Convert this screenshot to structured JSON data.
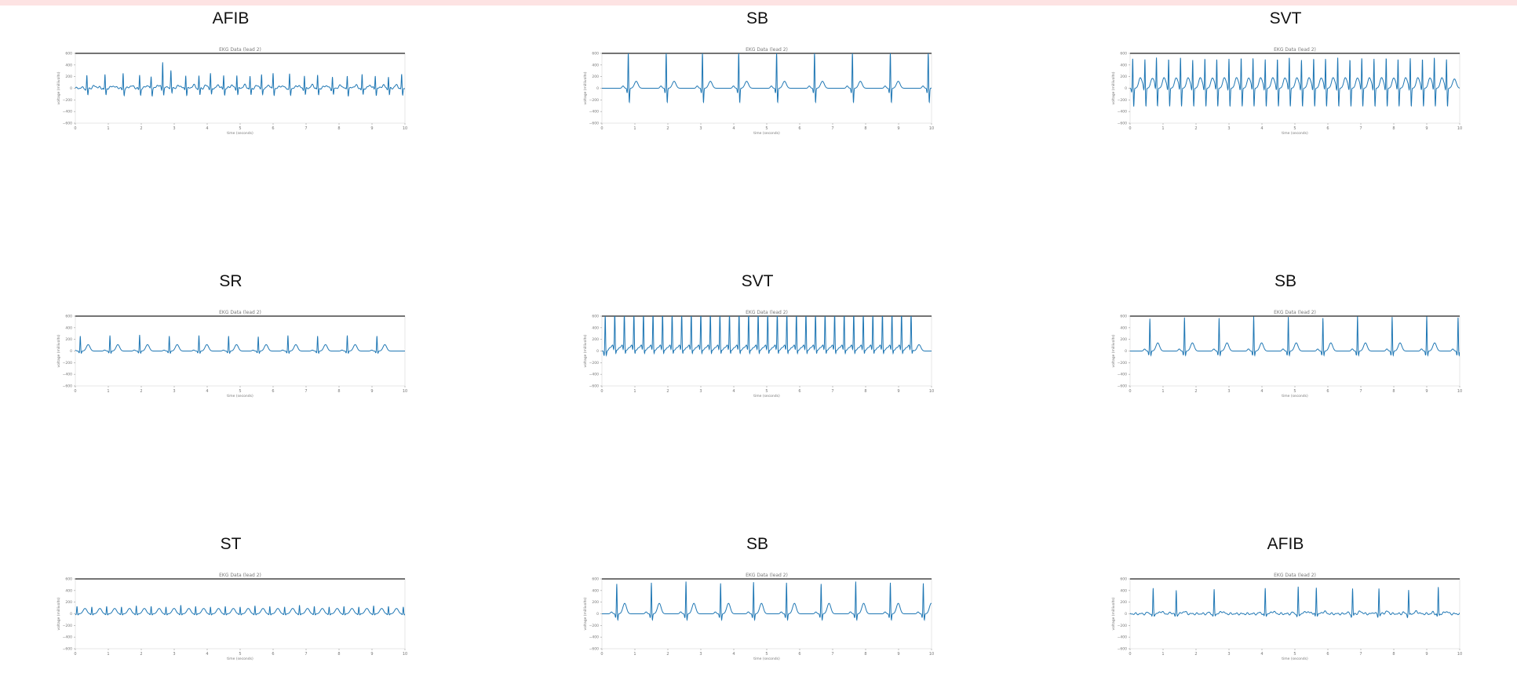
{
  "figure": {
    "subplot_title": "EKG Data (lead 2)",
    "xlabel": "time (seconds)",
    "ylabel": "voltage (millivolts)",
    "ecg_color": "#1f77b4"
  },
  "chart_data": [
    {
      "type": "line",
      "title": "AFIB",
      "subtitle": "EKG Data (lead 2)",
      "xlabel": "time (seconds)",
      "ylabel": "voltage (millivolts)",
      "xlim": [
        0,
        10
      ],
      "ylim": [
        -600,
        600
      ],
      "x_ticks": [
        0,
        1,
        2,
        3,
        4,
        5,
        6,
        7,
        8,
        9,
        10
      ],
      "y_ticks": [
        -600,
        -400,
        -200,
        0,
        200,
        400,
        600
      ],
      "beat_times": [
        0.35,
        0.9,
        1.45,
        1.95,
        2.3,
        2.65,
        2.9,
        3.35,
        3.75,
        4.1,
        4.5,
        4.9,
        5.3,
        5.65,
        6.0,
        6.5,
        6.95,
        7.35,
        7.8,
        8.25,
        8.7,
        9.1,
        9.5,
        9.9
      ],
      "r_peak_mv": [
        220,
        240,
        260,
        230,
        200,
        460,
        260,
        240,
        220,
        250,
        230,
        240,
        210,
        220,
        250,
        240,
        230,
        230,
        200,
        220,
        240,
        230,
        210,
        240
      ],
      "s_wave_mv": -120,
      "t_wave_mv": 40,
      "rhythm": "irregular"
    },
    {
      "type": "line",
      "title": "SB",
      "subtitle": "EKG Data (lead 2)",
      "xlabel": "time (seconds)",
      "ylabel": "voltage (millivolts)",
      "xlim": [
        0,
        10
      ],
      "ylim": [
        -600,
        600
      ],
      "x_ticks": [
        0,
        1,
        2,
        3,
        4,
        5,
        6,
        7,
        8,
        9,
        10
      ],
      "y_ticks": [
        -600,
        -400,
        -200,
        0,
        200,
        400,
        600
      ],
      "beat_times": [
        0.8,
        1.95,
        3.05,
        4.15,
        5.3,
        6.45,
        7.6,
        8.75,
        9.9
      ],
      "r_peak_mv": [
        650,
        650,
        650,
        650,
        650,
        650,
        650,
        650,
        650
      ],
      "s_wave_mv": -250,
      "t_wave_mv": 120,
      "rhythm": "regular"
    },
    {
      "type": "line",
      "title": "SVT",
      "subtitle": "EKG Data (lead 2)",
      "xlabel": "time (seconds)",
      "ylabel": "voltage (millivolts)",
      "xlim": [
        0,
        10
      ],
      "ylim": [
        -600,
        600
      ],
      "x_ticks": [
        0,
        1,
        2,
        3,
        4,
        5,
        6,
        7,
        8,
        9,
        10
      ],
      "y_ticks": [
        -600,
        -400,
        -200,
        0,
        200,
        400,
        600
      ],
      "beat_times": [
        0.08,
        0.45,
        0.8,
        1.17,
        1.53,
        1.9,
        2.27,
        2.63,
        3.0,
        3.37,
        3.73,
        4.1,
        4.47,
        4.83,
        5.2,
        5.57,
        5.93,
        6.3,
        6.67,
        7.03,
        7.4,
        7.77,
        8.13,
        8.5,
        8.87,
        9.23,
        9.6
      ],
      "r_peak_mv": [
        530,
        500,
        520,
        510,
        530,
        490,
        520,
        500,
        510,
        530,
        520,
        500,
        510,
        530,
        490,
        520,
        510,
        530,
        500,
        520,
        510,
        530,
        500,
        520,
        510,
        530,
        500
      ],
      "s_wave_mv": -320,
      "t_wave_mv": 160,
      "rhythm": "regular"
    },
    {
      "type": "line",
      "title": "SR",
      "subtitle": "EKG Data (lead 2)",
      "xlabel": "time (seconds)",
      "ylabel": "voltage (millivolts)",
      "xlim": [
        0,
        10
      ],
      "ylim": [
        -600,
        600
      ],
      "x_ticks": [
        0,
        1,
        2,
        3,
        4,
        5,
        6,
        7,
        8,
        9,
        10
      ],
      "y_ticks": [
        -600,
        -400,
        -200,
        0,
        200,
        400,
        600
      ],
      "beat_times": [
        0.15,
        1.05,
        1.95,
        2.85,
        3.75,
        4.65,
        5.55,
        6.45,
        7.35,
        8.25,
        9.15
      ],
      "r_peak_mv": [
        260,
        270,
        280,
        260,
        270,
        260,
        250,
        270,
        260,
        270,
        260
      ],
      "s_wave_mv": -40,
      "t_wave_mv": 110,
      "rhythm": "regular"
    },
    {
      "type": "line",
      "title": "SVT",
      "subtitle": "EKG Data (lead 2)",
      "xlabel": "time (seconds)",
      "ylabel": "voltage (millivolts)",
      "xlim": [
        0,
        10
      ],
      "ylim": [
        -600,
        600
      ],
      "x_ticks": [
        0,
        1,
        2,
        3,
        4,
        5,
        6,
        7,
        8,
        9,
        10
      ],
      "y_ticks": [
        -600,
        -400,
        -200,
        0,
        200,
        400,
        600
      ],
      "beat_times": [
        0.1,
        0.39,
        0.68,
        0.97,
        1.26,
        1.55,
        1.84,
        2.13,
        2.42,
        2.71,
        3.0,
        3.29,
        3.58,
        3.87,
        4.16,
        4.45,
        4.74,
        5.03,
        5.32,
        5.61,
        5.9,
        6.19,
        6.48,
        6.77,
        7.06,
        7.35,
        7.64,
        7.93,
        8.22,
        8.51,
        8.8,
        9.09,
        9.38
      ],
      "r_peak_mv": [
        650,
        650,
        650,
        650,
        650,
        650,
        650,
        650,
        650,
        650,
        650,
        650,
        650,
        650,
        650,
        650,
        650,
        650,
        650,
        650,
        650,
        650,
        650,
        650,
        650,
        650,
        650,
        650,
        650,
        650,
        650,
        650,
        650
      ],
      "s_wave_mv": -80,
      "t_wave_mv": 110,
      "rhythm": "regular"
    },
    {
      "type": "line",
      "title": "SB",
      "subtitle": "EKG Data (lead 2)",
      "xlabel": "time (seconds)",
      "ylabel": "voltage (millivolts)",
      "xlim": [
        0,
        10
      ],
      "ylim": [
        -600,
        600
      ],
      "x_ticks": [
        0,
        1,
        2,
        3,
        4,
        5,
        6,
        7,
        8,
        9,
        10
      ],
      "y_ticks": [
        -600,
        -400,
        -200,
        0,
        200,
        400,
        600
      ],
      "beat_times": [
        0.6,
        1.65,
        2.7,
        3.75,
        4.8,
        5.85,
        6.9,
        7.95,
        9.0,
        9.95
      ],
      "r_peak_mv": [
        560,
        580,
        570,
        600,
        590,
        570,
        600,
        590,
        600,
        580
      ],
      "s_wave_mv": -80,
      "t_wave_mv": 140,
      "rhythm": "regular"
    },
    {
      "type": "line",
      "title": "ST",
      "subtitle": "EKG Data (lead 2)",
      "xlabel": "time (seconds)",
      "ylabel": "voltage (millivolts)",
      "xlim": [
        0,
        10
      ],
      "ylim": [
        -600,
        600
      ],
      "x_ticks": [
        0,
        1,
        2,
        3,
        4,
        5,
        6,
        7,
        8,
        9,
        10
      ],
      "y_ticks": [
        -600,
        -400,
        -200,
        0,
        200,
        400,
        600
      ],
      "beat_times": [
        0.05,
        0.5,
        0.95,
        1.4,
        1.85,
        2.3,
        2.75,
        3.2,
        3.65,
        4.1,
        4.55,
        5.0,
        5.45,
        5.9,
        6.35,
        6.8,
        7.25,
        7.7,
        8.15,
        8.6,
        9.05,
        9.5,
        9.95
      ],
      "r_peak_mv": [
        130,
        120,
        130,
        120,
        140,
        130,
        120,
        150,
        130,
        120,
        130,
        120,
        140,
        130,
        120,
        150,
        130,
        120,
        130,
        120,
        140,
        130,
        120
      ],
      "s_wave_mv": -20,
      "t_wave_mv": 90,
      "rhythm": "regular"
    },
    {
      "type": "line",
      "title": "SB",
      "subtitle": "EKG Data (lead 2)",
      "xlabel": "time (seconds)",
      "ylabel": "voltage (millivolts)",
      "xlim": [
        0,
        10
      ],
      "ylim": [
        -600,
        600
      ],
      "x_ticks": [
        0,
        1,
        2,
        3,
        4,
        5,
        6,
        7,
        8,
        9,
        10
      ],
      "y_ticks": [
        -600,
        -400,
        -200,
        0,
        200,
        400,
        600
      ],
      "beat_times": [
        0.45,
        1.5,
        2.55,
        3.6,
        4.6,
        5.6,
        6.65,
        7.7,
        8.75,
        9.75
      ],
      "r_peak_mv": [
        520,
        540,
        560,
        530,
        550,
        540,
        520,
        560,
        540,
        530
      ],
      "s_wave_mv": -110,
      "t_wave_mv": 180,
      "rhythm": "regular"
    },
    {
      "type": "line",
      "title": "AFIB",
      "subtitle": "EKG Data (lead 2)",
      "xlabel": "time (seconds)",
      "ylabel": "voltage (millivolts)",
      "xlim": [
        0,
        10
      ],
      "ylim": [
        -600,
        600
      ],
      "x_ticks": [
        0,
        1,
        2,
        3,
        4,
        5,
        6,
        7,
        8,
        9,
        10
      ],
      "y_ticks": [
        -600,
        -400,
        -200,
        0,
        200,
        400,
        600
      ],
      "beat_times": [
        0.7,
        1.4,
        2.55,
        4.1,
        5.1,
        5.65,
        6.75,
        7.55,
        8.45,
        9.35
      ],
      "r_peak_mv": [
        430,
        400,
        410,
        440,
        450,
        460,
        430,
        440,
        410,
        460
      ],
      "s_wave_mv": -30,
      "t_wave_mv": 40,
      "rhythm": "irregular"
    }
  ]
}
